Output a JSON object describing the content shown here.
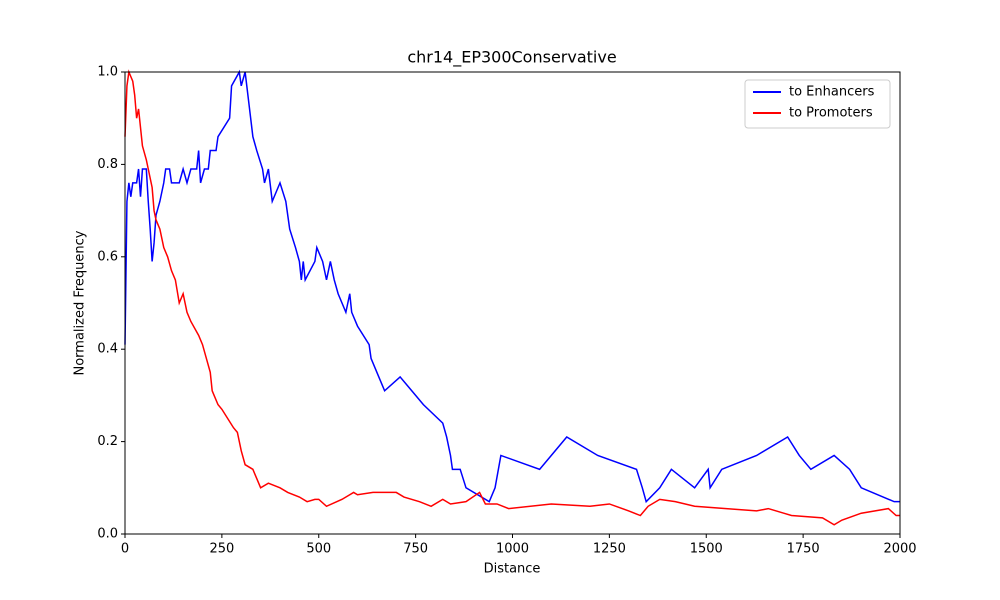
{
  "chart_data": {
    "type": "line",
    "title": "chr14_EP300Conservative",
    "x_label": "Distance",
    "y_label": "Normalized Frequency",
    "xlim": [
      0,
      2000
    ],
    "ylim": [
      0,
      1
    ],
    "xticks": [
      0,
      250,
      500,
      750,
      1000,
      1250,
      1500,
      1750,
      2000
    ],
    "yticks": [
      {
        "value": 0,
        "label": "0.0"
      },
      0.2,
      0.4,
      0.6,
      0.8,
      {
        "value": 1,
        "label": "1.0"
      }
    ],
    "grid": false,
    "legend": "upper right",
    "series": [
      {
        "name": "to Enhancers",
        "color": "#0000ff",
        "x": [
          0,
          5,
          10,
          15,
          20,
          30,
          35,
          40,
          45,
          55,
          60,
          65,
          70,
          75,
          80,
          90,
          100,
          105,
          115,
          120,
          140,
          150,
          160,
          170,
          185,
          190,
          195,
          205,
          215,
          220,
          235,
          240,
          270,
          275,
          295,
          300,
          310,
          320,
          330,
          340,
          355,
          360,
          370,
          380,
          400,
          415,
          420,
          425,
          440,
          450,
          455,
          460,
          465,
          490,
          495,
          510,
          520,
          530,
          540,
          550,
          570,
          580,
          585,
          600,
          630,
          635,
          655,
          670,
          710,
          740,
          770,
          820,
          830,
          840,
          845,
          865,
          880,
          940,
          955,
          970,
          1070,
          1100,
          1140,
          1220,
          1320,
          1335,
          1345,
          1380,
          1410,
          1470,
          1505,
          1510,
          1540,
          1630,
          1710,
          1740,
          1770,
          1830,
          1870,
          1900,
          1985,
          2000
        ],
        "values": [
          0.41,
          0.72,
          0.76,
          0.73,
          0.76,
          0.76,
          0.79,
          0.73,
          0.79,
          0.79,
          0.72,
          0.66,
          0.59,
          0.63,
          0.69,
          0.72,
          0.76,
          0.79,
          0.79,
          0.76,
          0.76,
          0.79,
          0.76,
          0.79,
          0.79,
          0.83,
          0.76,
          0.79,
          0.79,
          0.83,
          0.83,
          0.86,
          0.9,
          0.97,
          1.0,
          0.97,
          1.0,
          0.93,
          0.86,
          0.83,
          0.79,
          0.76,
          0.79,
          0.72,
          0.76,
          0.72,
          0.69,
          0.66,
          0.62,
          0.59,
          0.55,
          0.59,
          0.55,
          0.59,
          0.62,
          0.59,
          0.55,
          0.59,
          0.55,
          0.52,
          0.48,
          0.52,
          0.48,
          0.45,
          0.41,
          0.38,
          0.34,
          0.31,
          0.34,
          0.31,
          0.28,
          0.24,
          0.21,
          0.17,
          0.14,
          0.14,
          0.1,
          0.07,
          0.1,
          0.17,
          0.14,
          0.17,
          0.21,
          0.17,
          0.14,
          0.1,
          0.07,
          0.1,
          0.14,
          0.1,
          0.14,
          0.1,
          0.14,
          0.17,
          0.21,
          0.17,
          0.14,
          0.17,
          0.14,
          0.1,
          0.07,
          0.07
        ]
      },
      {
        "name": "to Promoters",
        "color": "#ff0000",
        "x": [
          0,
          5,
          10,
          20,
          25,
          30,
          35,
          40,
          45,
          55,
          60,
          70,
          75,
          80,
          90,
          100,
          110,
          120,
          130,
          140,
          150,
          160,
          170,
          190,
          200,
          210,
          220,
          225,
          230,
          240,
          250,
          265,
          280,
          290,
          300,
          310,
          330,
          340,
          350,
          370,
          400,
          420,
          450,
          470,
          490,
          500,
          520,
          560,
          580,
          590,
          600,
          640,
          700,
          720,
          760,
          790,
          820,
          840,
          880,
          915,
          930,
          960,
          990,
          1100,
          1200,
          1250,
          1300,
          1330,
          1350,
          1380,
          1420,
          1470,
          1630,
          1660,
          1700,
          1720,
          1800,
          1830,
          1850,
          1900,
          1970,
          1990,
          2000
        ],
        "values": [
          0.86,
          0.97,
          1.0,
          0.98,
          0.95,
          0.9,
          0.92,
          0.88,
          0.84,
          0.81,
          0.79,
          0.75,
          0.7,
          0.68,
          0.66,
          0.62,
          0.6,
          0.57,
          0.55,
          0.5,
          0.52,
          0.48,
          0.46,
          0.43,
          0.41,
          0.38,
          0.35,
          0.31,
          0.3,
          0.28,
          0.27,
          0.25,
          0.23,
          0.22,
          0.18,
          0.15,
          0.14,
          0.12,
          0.1,
          0.11,
          0.1,
          0.09,
          0.08,
          0.07,
          0.075,
          0.075,
          0.06,
          0.075,
          0.085,
          0.09,
          0.085,
          0.09,
          0.09,
          0.08,
          0.07,
          0.06,
          0.075,
          0.065,
          0.07,
          0.09,
          0.065,
          0.065,
          0.055,
          0.065,
          0.06,
          0.065,
          0.05,
          0.04,
          0.06,
          0.075,
          0.07,
          0.06,
          0.05,
          0.055,
          0.045,
          0.04,
          0.035,
          0.02,
          0.03,
          0.045,
          0.055,
          0.04,
          0.04
        ]
      }
    ]
  }
}
